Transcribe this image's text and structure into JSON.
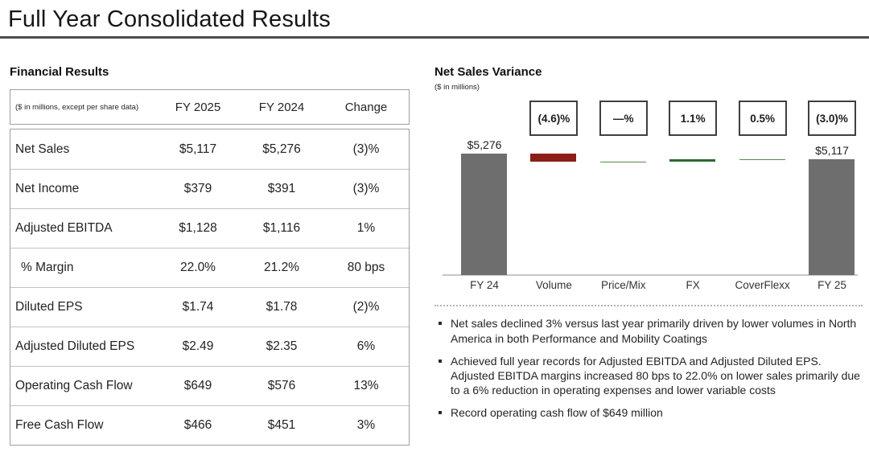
{
  "page_title": "Full Year Consolidated Results",
  "financial_results": {
    "title": "Financial Results",
    "header": {
      "note": "($ in millions, except per share data)",
      "columns": [
        "FY 2025",
        "FY 2024",
        "Change"
      ]
    },
    "rows": [
      {
        "label": "Net Sales",
        "fy2025": "$5,117",
        "fy2024": "$5,276",
        "change": "(3)%",
        "indent": false
      },
      {
        "label": "Net Income",
        "fy2025": "$379",
        "fy2024": "$391",
        "change": "(3)%",
        "indent": false
      },
      {
        "label": "Adjusted EBITDA",
        "fy2025": "$1,128",
        "fy2024": "$1,116",
        "change": "1%",
        "indent": false
      },
      {
        "label": "% Margin",
        "fy2025": "22.0%",
        "fy2024": "21.2%",
        "change": "80 bps",
        "indent": true
      },
      {
        "label": "Diluted EPS",
        "fy2025": "$1.74",
        "fy2024": "$1.78",
        "change": "(2)%",
        "indent": false
      },
      {
        "label": "Adjusted Diluted EPS",
        "fy2025": "$2.49",
        "fy2024": "$2.35",
        "change": "6%",
        "indent": false
      },
      {
        "label": "Operating Cash Flow",
        "fy2025": "$649",
        "fy2024": "$576",
        "change": "13%",
        "indent": false
      },
      {
        "label": "Free Cash Flow",
        "fy2025": "$466",
        "fy2024": "$451",
        "change": "3%",
        "indent": false
      }
    ]
  },
  "chart_data": {
    "type": "waterfall",
    "title": "Net Sales Variance",
    "units_label": "($ in millions)",
    "categories": [
      "FY 24",
      "Volume",
      "Price/Mix",
      "FX",
      "CoverFlexx",
      "FY 25"
    ],
    "bar_types": [
      "total",
      "delta",
      "delta",
      "delta",
      "delta",
      "total"
    ],
    "pct_labels": [
      null,
      "(4.6)%",
      "—%",
      "1.1%",
      "0.5%",
      "(3.0)%"
    ],
    "bar_value_labels": [
      "$5,276",
      null,
      null,
      null,
      null,
      "$5,117"
    ],
    "totals": {
      "start": 5276,
      "end": 5117
    },
    "deltas": [
      null,
      -243,
      0,
      58,
      26,
      null
    ],
    "bar_colors": [
      "#6e6e6e",
      "#8c1e18",
      "#578a50",
      "#2d6930",
      "#578a50",
      "#6e6e6e"
    ],
    "legend": "none",
    "grid": "off"
  },
  "bullets": [
    "Net sales declined 3% versus last year primarily driven by lower volumes in North America in both Performance and Mobility Coatings",
    "Achieved full year records for Adjusted EBITDA and Adjusted Diluted EPS. Adjusted EBITDA margins increased 80 bps to 22.0% on lower sales primarily due to a 6% reduction in operating expenses and lower variable costs",
    "Record operating cash flow of $649 million"
  ]
}
